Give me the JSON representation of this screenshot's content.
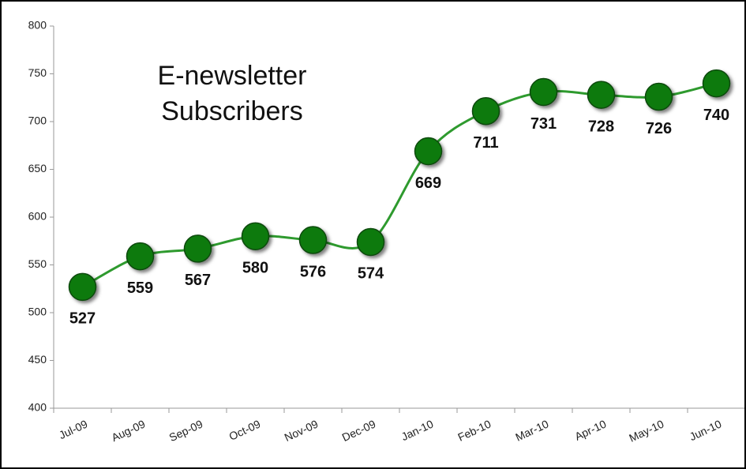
{
  "chart_data": {
    "type": "line",
    "title": "E-newsletter Subscribers",
    "categories": [
      "Jul-09",
      "Aug-09",
      "Sep-09",
      "Oct-09",
      "Nov-09",
      "Dec-09",
      "Jan-10",
      "Feb-10",
      "Mar-10",
      "Apr-10",
      "May-10",
      "Jun-10"
    ],
    "values": [
      527,
      559,
      567,
      580,
      576,
      574,
      669,
      711,
      731,
      728,
      726,
      740
    ],
    "color": "#2e9a2e",
    "marker_color": "#0f7a0f",
    "ylim": [
      400,
      800
    ],
    "yticks": [
      400,
      450,
      500,
      550,
      600,
      650,
      700,
      750,
      800
    ],
    "grid": false
  }
}
